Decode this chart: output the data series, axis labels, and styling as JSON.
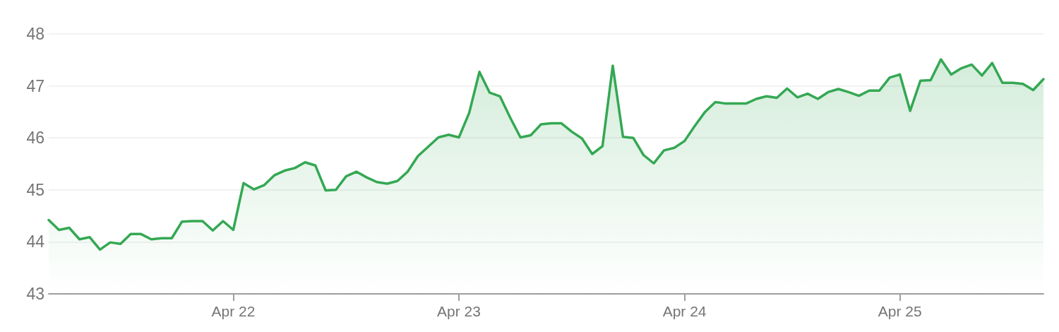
{
  "chart_data": {
    "type": "area",
    "categories": [
      null,
      null,
      null,
      null,
      null,
      null,
      null,
      null,
      null,
      null,
      null,
      null,
      null,
      null,
      null,
      null,
      null,
      null,
      "Apr 22",
      null,
      null,
      null,
      null,
      null,
      null,
      null,
      null,
      null,
      null,
      null,
      null,
      null,
      null,
      null,
      null,
      null,
      null,
      null,
      null,
      null,
      "Apr 23",
      null,
      null,
      null,
      null,
      null,
      null,
      null,
      null,
      null,
      null,
      null,
      null,
      null,
      null,
      null,
      null,
      null,
      null,
      null,
      null,
      null,
      "Apr 24",
      null,
      null,
      null,
      null,
      null,
      null,
      null,
      null,
      null,
      null,
      null,
      null,
      null,
      null,
      null,
      null,
      null,
      null,
      null,
      null,
      "Apr 25",
      null,
      null,
      null,
      null,
      null,
      null,
      null,
      null,
      null,
      null,
      null,
      null,
      null,
      null
    ],
    "series": [
      {
        "color": "#34a853",
        "values": [
          44.42,
          44.23,
          44.27,
          44.05,
          44.09,
          43.85,
          43.99,
          43.96,
          44.15,
          44.15,
          44.05,
          44.07,
          44.07,
          44.39,
          44.4,
          44.4,
          44.22,
          44.4,
          44.23,
          45.13,
          45.01,
          45.09,
          45.28,
          45.37,
          45.42,
          45.53,
          45.47,
          44.99,
          45.0,
          45.26,
          45.35,
          45.24,
          45.15,
          45.12,
          45.17,
          45.35,
          45.65,
          45.83,
          46.01,
          46.06,
          46.01,
          46.48,
          47.27,
          46.87,
          46.8,
          46.39,
          46.01,
          46.05,
          46.26,
          46.28,
          46.28,
          46.12,
          45.99,
          45.69,
          45.84,
          47.39,
          46.02,
          46.0,
          45.67,
          45.51,
          45.76,
          45.81,
          45.94,
          46.23,
          46.5,
          46.69,
          46.66,
          46.66,
          46.66,
          46.75,
          46.8,
          46.77,
          46.95,
          46.78,
          46.85,
          46.75,
          46.88,
          46.94,
          46.88,
          46.81,
          46.91,
          46.91,
          47.16,
          47.22,
          46.52,
          47.1,
          47.11,
          47.51,
          47.22,
          47.34,
          47.41,
          47.2,
          47.44,
          47.06,
          47.06,
          47.04,
          46.92,
          47.13
        ]
      }
    ],
    "ylim": [
      43,
      48
    ],
    "yticks": [
      43,
      44,
      45,
      46,
      47,
      48
    ],
    "grid": "y",
    "marker": "none",
    "line_style": "solid"
  }
}
